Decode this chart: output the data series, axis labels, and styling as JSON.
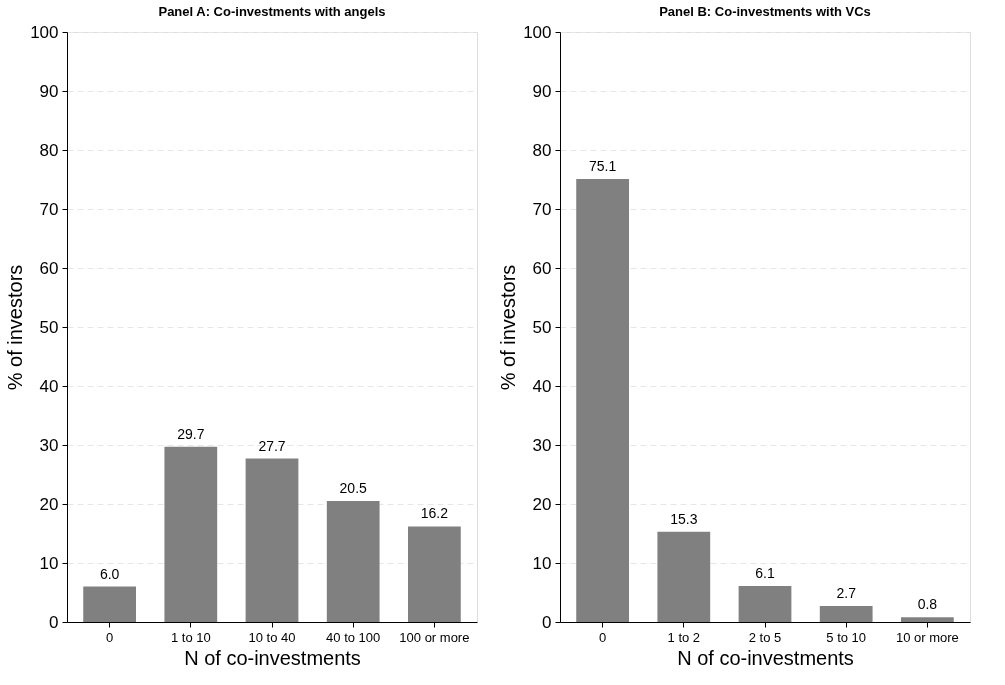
{
  "chart_data": [
    {
      "type": "bar",
      "title": "Panel A: Co-investments with angels",
      "xlabel": "N of co-investments",
      "ylabel": "% of investors",
      "categories": [
        "0",
        "1 to 10",
        "10 to 40",
        "40 to 100",
        "100 or more"
      ],
      "values": [
        6.0,
        29.7,
        27.7,
        20.5,
        16.2
      ],
      "value_labels": [
        "6.0",
        "29.7",
        "27.7",
        "20.5",
        "16.2"
      ],
      "color": "#808080",
      "ylim": [
        0,
        100
      ],
      "yticks": [
        0,
        10,
        20,
        30,
        40,
        50,
        60,
        70,
        80,
        90,
        100
      ],
      "grid": "y"
    },
    {
      "type": "bar",
      "title": "Panel B: Co-investments with VCs",
      "xlabel": "N of co-investments",
      "ylabel": "% of investors",
      "categories": [
        "0",
        "1 to 2",
        "2 to 5",
        "5 to 10",
        "10 or more"
      ],
      "values": [
        75.1,
        15.3,
        6.1,
        2.7,
        0.8
      ],
      "value_labels": [
        "75.1",
        "15.3",
        "6.1",
        "2.7",
        "0.8"
      ],
      "color": "#808080",
      "ylim": [
        0,
        100
      ],
      "yticks": [
        0,
        10,
        20,
        30,
        40,
        50,
        60,
        70,
        80,
        90,
        100
      ],
      "grid": "y"
    }
  ]
}
